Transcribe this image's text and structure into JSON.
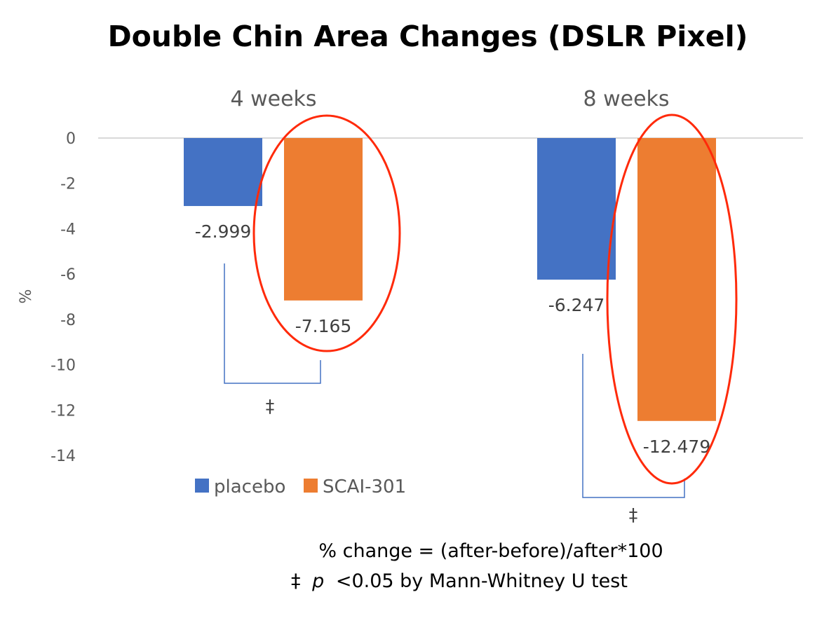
{
  "chart_data": {
    "type": "bar",
    "title": "Double Chin Area Changes (DSLR Pixel)",
    "ylabel": "%",
    "xlabel": "",
    "ylim": [
      -14,
      0
    ],
    "yticks": [
      "0",
      "-2",
      "-4",
      "-6",
      "-8",
      "-10",
      "-12",
      "-14"
    ],
    "ytick_values": [
      0,
      -2,
      -4,
      -6,
      -8,
      -10,
      -12,
      -14
    ],
    "categories": [
      "4 weeks",
      "8 weeks"
    ],
    "series": [
      {
        "name": "placebo",
        "color": "#4472C4",
        "values": [
          -2.999,
          -6.247
        ],
        "labels": [
          "-2.999",
          "-6.247"
        ]
      },
      {
        "name": "SCAI-301",
        "color": "#ED7D31",
        "values": [
          -7.165,
          -12.479
        ],
        "labels": [
          "-7.165",
          "-12.479"
        ]
      }
    ],
    "legend_position": "bottom-left",
    "grid": false,
    "annotations": {
      "significance_marker": "‡",
      "formula": "% change = (after-before)/after*100",
      "footnote_marker": "‡",
      "footnote_p": "p",
      "footnote_rest": "<0.05 by Mann-Whitney U test",
      "highlight_color": "#FF2A0A",
      "bracket_color": "#4472C4"
    }
  }
}
